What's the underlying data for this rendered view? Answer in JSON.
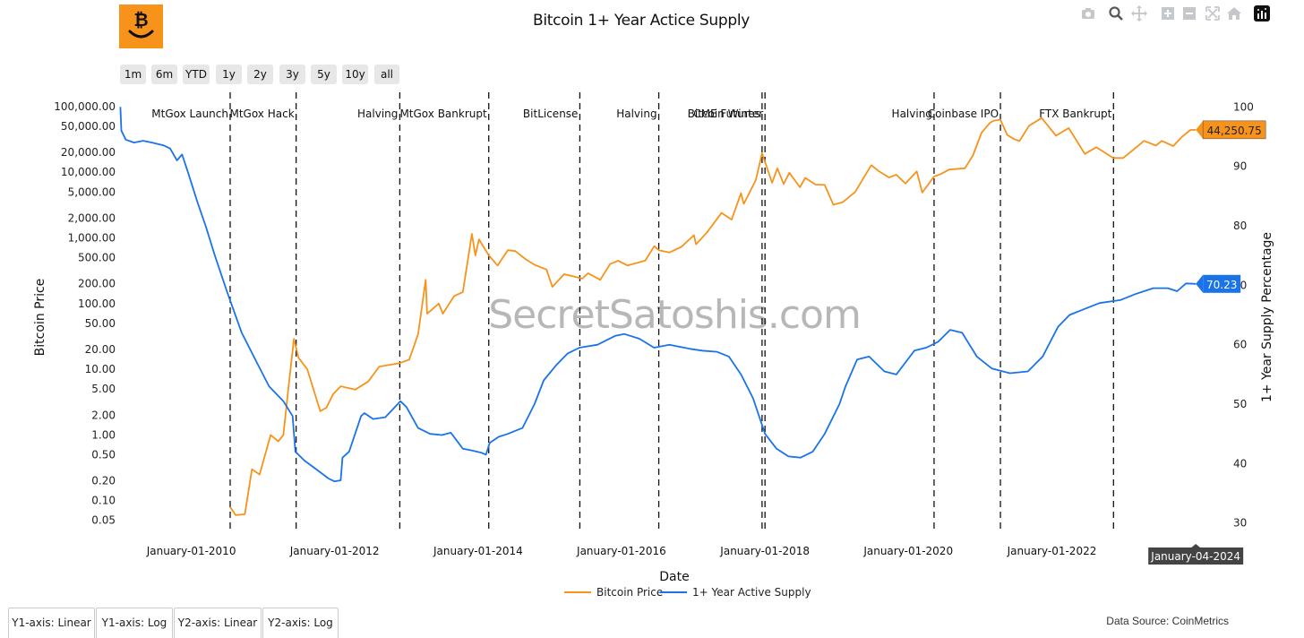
{
  "logo": {
    "icon": "bitcoin-smile-logo-icon",
    "color": "#F7931A"
  },
  "chart_title": "Bitcoin 1+ Year Actice Supply",
  "modebar": [
    "camera-icon",
    "zoom-icon",
    "pan-icon",
    "zoom-in-icon",
    "zoom-out-icon",
    "autoscale-icon",
    "reset-axes-icon",
    "plotly-logo-icon"
  ],
  "range_selector": [
    "1m",
    "6m",
    "YTD",
    "1y",
    "2y",
    "3y",
    "5y",
    "10y",
    "all"
  ],
  "watermark": "SecretSatoshis.com",
  "tabs": [
    "Y1-axis: Linear",
    "Y1-axis: Log",
    "Y2-axis: Linear",
    "Y2-axis: Log"
  ],
  "data_source": "Data Source: CoinMetrics",
  "chart_data": {
    "type": "line",
    "title": "Bitcoin 1+ Year Actice Supply",
    "xlabel": "Date",
    "ylabel": "Bitcoin Price",
    "y2label": "1+ Year Supply Percentage",
    "y_scale": "log",
    "ylim": [
      0.03,
      150000
    ],
    "y2lim": [
      28,
      102
    ],
    "xlim": [
      "2009-01-03",
      "2024-06-20"
    ],
    "x_ticks": [
      {
        "date": "2010-01-01",
        "label": "January-01-2010"
      },
      {
        "date": "2012-01-01",
        "label": "January-01-2012"
      },
      {
        "date": "2014-01-01",
        "label": "January-01-2014"
      },
      {
        "date": "2016-01-01",
        "label": "January-01-2016"
      },
      {
        "date": "2018-01-01",
        "label": "January-01-2018"
      },
      {
        "date": "2020-01-01",
        "label": "January-01-2020"
      },
      {
        "date": "2022-01-01",
        "label": "January-01-2022"
      }
    ],
    "y_ticks": [
      {
        "value": 100000,
        "label": "100,000.00"
      },
      {
        "value": 50000,
        "label": "50,000.00"
      },
      {
        "value": 20000,
        "label": "20,000.00"
      },
      {
        "value": 10000,
        "label": "10,000.00"
      },
      {
        "value": 5000,
        "label": "5,000.00"
      },
      {
        "value": 2000,
        "label": "2,000.00"
      },
      {
        "value": 1000,
        "label": "1,000.00"
      },
      {
        "value": 500,
        "label": "500.00"
      },
      {
        "value": 200,
        "label": "200.00"
      },
      {
        "value": 100,
        "label": "100.00"
      },
      {
        "value": 50,
        "label": "50.00"
      },
      {
        "value": 20,
        "label": "20.00"
      },
      {
        "value": 10,
        "label": "10.00"
      },
      {
        "value": 5,
        "label": "5.00"
      },
      {
        "value": 2,
        "label": "2.00"
      },
      {
        "value": 1,
        "label": "1.00"
      },
      {
        "value": 0.5,
        "label": "0.50"
      },
      {
        "value": 0.2,
        "label": "0.20"
      },
      {
        "value": 0.1,
        "label": "0.10"
      },
      {
        "value": 0.05,
        "label": "0.05"
      }
    ],
    "y2_ticks": [
      100,
      90,
      80,
      70,
      60,
      50,
      40,
      30
    ],
    "legend_position": "bottom-center",
    "series": [
      {
        "name": "Bitcoin Price",
        "axis": "y",
        "color": "#F7931A",
        "points": [
          [
            "2010-07-18",
            0.08
          ],
          [
            "2010-08-15",
            0.06
          ],
          [
            "2010-10-01",
            0.062
          ],
          [
            "2010-11-06",
            0.3
          ],
          [
            "2010-12-15",
            0.25
          ],
          [
            "2011-02-09",
            1.0
          ],
          [
            "2011-03-20",
            0.8
          ],
          [
            "2011-04-15",
            1.0
          ],
          [
            "2011-05-10",
            5
          ],
          [
            "2011-06-08",
            29
          ],
          [
            "2011-07-01",
            15
          ],
          [
            "2011-08-15",
            10
          ],
          [
            "2011-10-20",
            2.3
          ],
          [
            "2011-11-20",
            2.6
          ],
          [
            "2011-12-25",
            4.2
          ],
          [
            "2012-02-01",
            5.5
          ],
          [
            "2012-04-15",
            4.9
          ],
          [
            "2012-06-20",
            6.5
          ],
          [
            "2012-08-15",
            11
          ],
          [
            "2012-11-28",
            12.4
          ],
          [
            "2013-01-15",
            14
          ],
          [
            "2013-03-01",
            34
          ],
          [
            "2013-04-09",
            230
          ],
          [
            "2013-04-16",
            70
          ],
          [
            "2013-06-15",
            100
          ],
          [
            "2013-07-05",
            70
          ],
          [
            "2013-09-01",
            130
          ],
          [
            "2013-10-15",
            150
          ],
          [
            "2013-11-30",
            1150
          ],
          [
            "2013-12-18",
            540
          ],
          [
            "2014-01-05",
            950
          ],
          [
            "2014-02-25",
            540
          ],
          [
            "2014-04-10",
            380
          ],
          [
            "2014-06-01",
            650
          ],
          [
            "2014-07-09",
            630
          ],
          [
            "2014-09-01",
            470
          ],
          [
            "2014-10-15",
            390
          ],
          [
            "2014-12-15",
            330
          ],
          [
            "2015-01-14",
            180
          ],
          [
            "2015-03-15",
            280
          ],
          [
            "2015-06-15",
            240
          ],
          [
            "2015-07-15",
            290
          ],
          [
            "2015-09-15",
            230
          ],
          [
            "2015-11-04",
            400
          ],
          [
            "2015-12-15",
            450
          ],
          [
            "2016-02-01",
            380
          ],
          [
            "2016-05-01",
            450
          ],
          [
            "2016-06-16",
            750
          ],
          [
            "2016-07-09",
            650
          ],
          [
            "2016-09-01",
            600
          ],
          [
            "2016-11-01",
            730
          ],
          [
            "2017-01-04",
            1100
          ],
          [
            "2017-01-15",
            800
          ],
          [
            "2017-03-10",
            1200
          ],
          [
            "2017-05-25",
            2400
          ],
          [
            "2017-07-15",
            1900
          ],
          [
            "2017-09-01",
            4800
          ],
          [
            "2017-09-15",
            3300
          ],
          [
            "2017-11-15",
            7600
          ],
          [
            "2017-12-17",
            19500
          ],
          [
            "2018-02-06",
            6900
          ],
          [
            "2018-03-05",
            11500
          ],
          [
            "2018-04-06",
            6600
          ],
          [
            "2018-05-05",
            9800
          ],
          [
            "2018-06-28",
            5900
          ],
          [
            "2018-07-25",
            8200
          ],
          [
            "2018-09-15",
            6500
          ],
          [
            "2018-11-01",
            6400
          ],
          [
            "2018-12-15",
            3200
          ],
          [
            "2019-02-01",
            3500
          ],
          [
            "2019-04-05",
            5000
          ],
          [
            "2019-06-26",
            12800
          ],
          [
            "2019-08-01",
            10500
          ],
          [
            "2019-09-25",
            8300
          ],
          [
            "2019-11-01",
            9200
          ],
          [
            "2019-12-17",
            6700
          ],
          [
            "2020-02-13",
            10300
          ],
          [
            "2020-03-12",
            4900
          ],
          [
            "2020-05-11",
            8600
          ],
          [
            "2020-06-15",
            9400
          ],
          [
            "2020-07-27",
            11000
          ],
          [
            "2020-10-15",
            11500
          ],
          [
            "2020-11-25",
            18000
          ],
          [
            "2021-01-08",
            40000
          ],
          [
            "2021-02-21",
            57000
          ],
          [
            "2021-03-13",
            61000
          ],
          [
            "2021-04-14",
            63000
          ],
          [
            "2021-05-19",
            37000
          ],
          [
            "2021-06-22",
            32000
          ],
          [
            "2021-07-20",
            29800
          ],
          [
            "2021-09-07",
            51000
          ],
          [
            "2021-11-10",
            67000
          ],
          [
            "2022-01-22",
            36000
          ],
          [
            "2022-03-28",
            47000
          ],
          [
            "2022-06-18",
            19000
          ],
          [
            "2022-08-15",
            24000
          ],
          [
            "2022-11-09",
            16500
          ],
          [
            "2022-12-30",
            16500
          ],
          [
            "2023-03-15",
            25000
          ],
          [
            "2023-04-15",
            30000
          ],
          [
            "2023-06-15",
            25500
          ],
          [
            "2023-07-15",
            30000
          ],
          [
            "2023-09-11",
            25000
          ],
          [
            "2023-10-25",
            34500
          ],
          [
            "2023-12-08",
            44000
          ],
          [
            "2024-01-04",
            44250.75
          ]
        ]
      },
      {
        "name": "1+ Year Active Supply",
        "axis": "y2",
        "color": "#1A73E8",
        "points": [
          [
            "2009-01-05",
            100
          ],
          [
            "2009-01-10",
            96
          ],
          [
            "2009-02-01",
            94.5
          ],
          [
            "2009-03-15",
            94
          ],
          [
            "2009-05-01",
            94.3
          ],
          [
            "2009-06-15",
            94
          ],
          [
            "2009-08-15",
            93.5
          ],
          [
            "2009-09-15",
            93
          ],
          [
            "2009-10-20",
            91
          ],
          [
            "2009-11-15",
            92
          ],
          [
            "2009-12-15",
            89
          ],
          [
            "2010-02-01",
            84
          ],
          [
            "2010-03-15",
            80
          ],
          [
            "2010-05-01",
            75
          ],
          [
            "2010-07-01",
            69
          ],
          [
            "2010-09-15",
            62
          ],
          [
            "2010-12-01",
            57
          ],
          [
            "2011-02-01",
            53
          ],
          [
            "2011-04-15",
            50.5
          ],
          [
            "2011-06-01",
            48
          ],
          [
            "2011-06-15",
            42
          ],
          [
            "2011-08-01",
            40.5
          ],
          [
            "2011-10-01",
            39
          ],
          [
            "2011-12-01",
            37.5
          ],
          [
            "2012-01-01",
            37
          ],
          [
            "2012-02-01",
            37.2
          ],
          [
            "2012-02-10",
            41
          ],
          [
            "2012-03-15",
            42
          ],
          [
            "2012-05-15",
            48
          ],
          [
            "2012-06-01",
            48.5
          ],
          [
            "2012-07-15",
            47.5
          ],
          [
            "2012-09-15",
            47.8
          ],
          [
            "2012-12-01",
            50.5
          ],
          [
            "2013-01-01",
            49.5
          ],
          [
            "2013-03-01",
            46
          ],
          [
            "2013-05-01",
            45
          ],
          [
            "2013-07-01",
            44.8
          ],
          [
            "2013-08-15",
            45.2
          ],
          [
            "2013-10-15",
            42.5
          ],
          [
            "2013-12-01",
            42.2
          ],
          [
            "2014-01-20",
            41.8
          ],
          [
            "2014-02-10",
            41.5
          ],
          [
            "2014-03-01",
            43.5
          ],
          [
            "2014-04-15",
            44.5
          ],
          [
            "2014-06-01",
            45
          ],
          [
            "2014-08-15",
            46
          ],
          [
            "2014-10-15",
            50
          ],
          [
            "2014-12-01",
            54
          ],
          [
            "2015-02-01",
            56.5
          ],
          [
            "2015-04-01",
            58.5
          ],
          [
            "2015-06-01",
            59.5
          ],
          [
            "2015-09-01",
            60
          ],
          [
            "2015-12-01",
            61.5
          ],
          [
            "2016-01-15",
            61.8
          ],
          [
            "2016-04-01",
            61
          ],
          [
            "2016-06-15",
            59.5
          ],
          [
            "2016-09-01",
            60
          ],
          [
            "2016-12-15",
            59.3
          ],
          [
            "2017-02-15",
            59
          ],
          [
            "2017-05-01",
            58.8
          ],
          [
            "2017-07-01",
            58
          ],
          [
            "2017-09-01",
            55
          ],
          [
            "2017-11-01",
            51
          ],
          [
            "2018-01-01",
            45
          ],
          [
            "2018-03-01",
            42.5
          ],
          [
            "2018-05-01",
            41.2
          ],
          [
            "2018-07-01",
            41
          ],
          [
            "2018-09-01",
            42
          ],
          [
            "2018-11-01",
            45
          ],
          [
            "2019-01-15",
            50
          ],
          [
            "2019-02-15",
            53
          ],
          [
            "2019-04-15",
            57.5
          ],
          [
            "2019-06-15",
            58
          ],
          [
            "2019-09-01",
            55.5
          ],
          [
            "2019-11-01",
            55
          ],
          [
            "2020-02-01",
            59
          ],
          [
            "2020-04-01",
            59.5
          ],
          [
            "2020-06-01",
            60.5
          ],
          [
            "2020-08-01",
            62.5
          ],
          [
            "2020-10-01",
            62
          ],
          [
            "2020-12-15",
            58
          ],
          [
            "2021-03-01",
            56
          ],
          [
            "2021-06-01",
            55.2
          ],
          [
            "2021-09-01",
            55.5
          ],
          [
            "2021-11-15",
            58
          ],
          [
            "2022-02-01",
            63
          ],
          [
            "2022-04-01",
            65
          ],
          [
            "2022-06-15",
            66
          ],
          [
            "2022-09-01",
            67
          ],
          [
            "2022-12-15",
            67.5
          ],
          [
            "2023-03-01",
            68.5
          ],
          [
            "2023-06-01",
            69.5
          ],
          [
            "2023-08-15",
            69.5
          ],
          [
            "2023-10-01",
            69
          ],
          [
            "2023-11-15",
            70.3
          ],
          [
            "2024-01-04",
            70.23
          ]
        ]
      }
    ],
    "events": [
      {
        "label": "MtGox Launch",
        "date": "2010-07-18"
      },
      {
        "label": "MtGox Hack",
        "date": "2011-06-19"
      },
      {
        "label": "Halving",
        "date": "2012-11-28"
      },
      {
        "label": "MtGox Bankrupt",
        "date": "2014-02-24"
      },
      {
        "label": "BitLicense",
        "date": "2015-06-03"
      },
      {
        "label": "Halving",
        "date": "2016-07-09"
      },
      {
        "label": "CME Futures",
        "date": "2017-12-17"
      },
      {
        "label": "Bitcoin Winter",
        "date": "2018-01-01"
      },
      {
        "label": "Halving",
        "date": "2020-05-11"
      },
      {
        "label": "Coinbase IPO",
        "date": "2021-04-14"
      },
      {
        "label": "FTX Bankrupt",
        "date": "2022-11-11"
      }
    ],
    "last_values": {
      "price_label": "44,250.75",
      "supply_label": "70.23",
      "date_label": "January-04-2024",
      "price_value": 44250.75,
      "supply_value": 70.23,
      "date": "2024-01-04"
    }
  }
}
